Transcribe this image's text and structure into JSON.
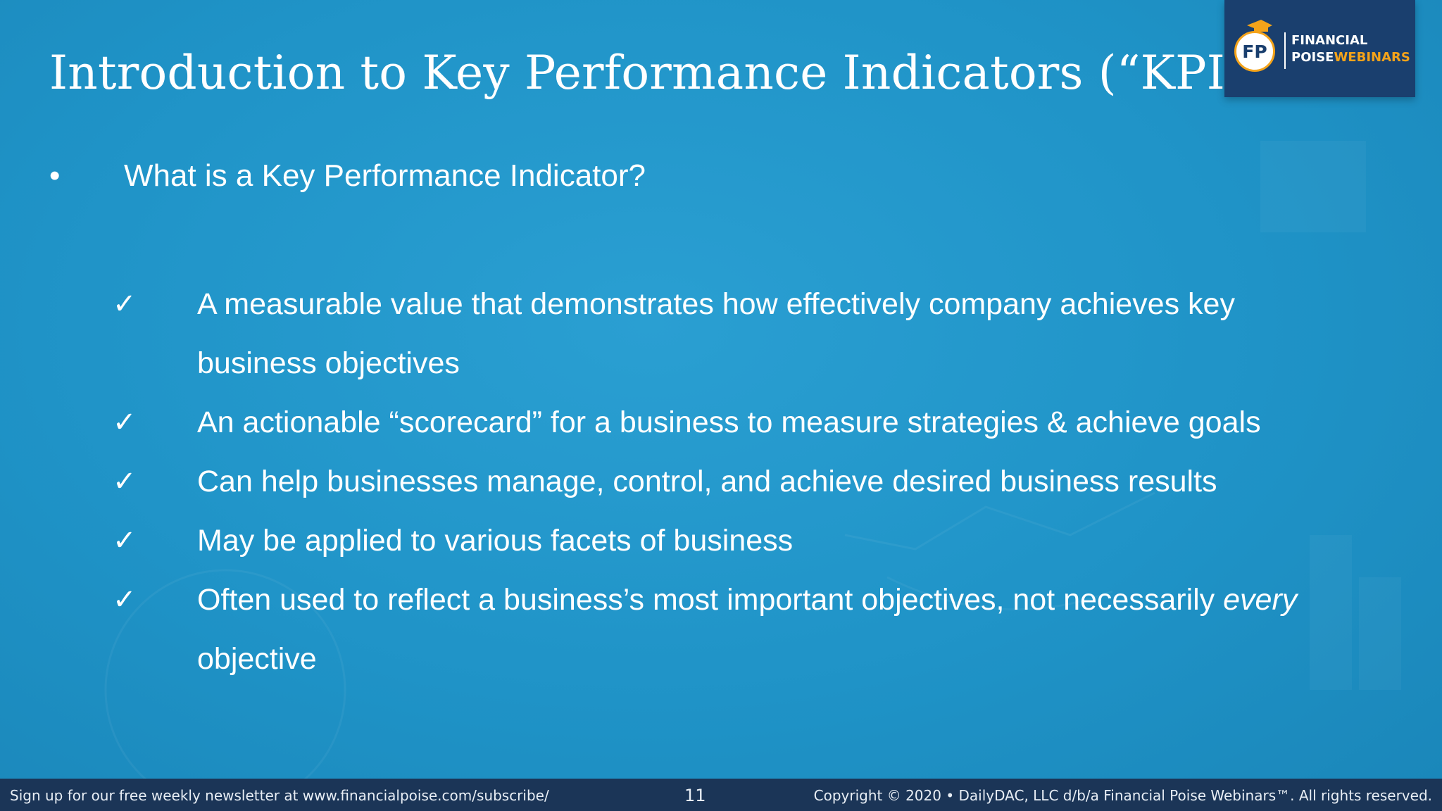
{
  "slide": {
    "title": "Introduction to Key Performance Indicators (“KPI”)",
    "bullet": {
      "marker": "•",
      "text": "What is a Key Performance Indicator?"
    },
    "check_marker": "✓",
    "checks": [
      {
        "text_line1": "A measurable value that demonstrates how effectively company achieves key",
        "text_line2": "business objectives"
      },
      {
        "text": "An actionable “scorecard” for a business to measure strategies & achieve goals"
      },
      {
        "text": "Can help businesses manage, control, and achieve desired business results"
      },
      {
        "text": "May be applied to various facets of business"
      },
      {
        "text_pre": "Often used to reflect a business’s most important objectives, not necessarily ",
        "text_em": "every",
        "text_line2": "objective"
      }
    ]
  },
  "logo": {
    "monogram": "FP",
    "line1": "FINANCIAL",
    "line2_a": "POISE",
    "line2_b": "WEBINARS",
    "colors": {
      "navy": "#1a3f6e",
      "gold": "#f4a31a"
    }
  },
  "footer": {
    "left": "Sign up for our free weekly newsletter at www.financialpoise.com/subscribe/",
    "page": "11",
    "right": "Copyright © 2020 • DailyDAC, LLC d/b/a Financial Poise Webinars™. All rights reserved."
  },
  "colors": {
    "background": "#1f93c7",
    "footer": "#1b3557",
    "text": "#ffffff"
  }
}
